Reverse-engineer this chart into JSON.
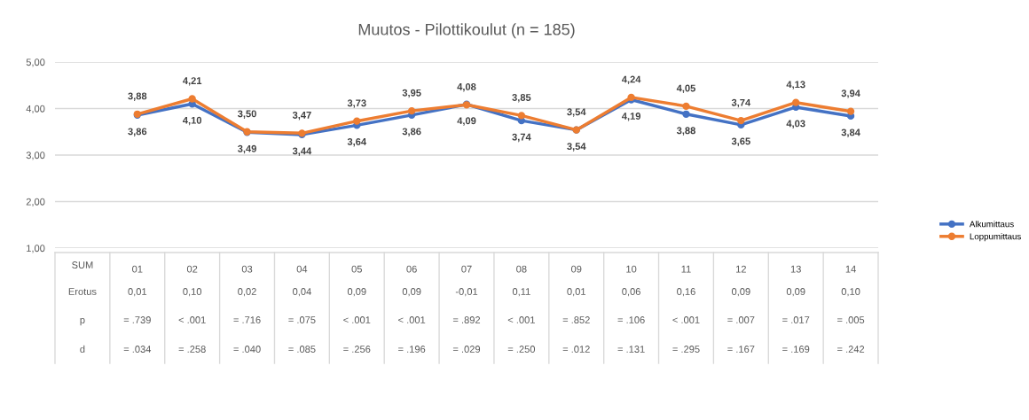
{
  "chart_data": {
    "type": "line",
    "title": "Muutos - Pilottikoulut (n = 185)",
    "xlabel": "SUM",
    "categories": [
      "01",
      "02",
      "03",
      "04",
      "05",
      "06",
      "07",
      "08",
      "09",
      "10",
      "11",
      "12",
      "13",
      "14"
    ],
    "series": [
      {
        "name": "Alkumittaus",
        "color": "#4472c4",
        "values": [
          3.86,
          4.1,
          3.49,
          3.44,
          3.64,
          3.86,
          4.09,
          3.74,
          3.54,
          4.19,
          3.88,
          3.65,
          4.03,
          3.84
        ],
        "value_labels": [
          "3,86",
          "4,10",
          "3,49",
          "3,44",
          "3,64",
          "3,86",
          "4,09",
          "3,74",
          "3,54",
          "4,19",
          "3,88",
          "3,65",
          "4,03",
          "3,84"
        ]
      },
      {
        "name": "Loppumittaus",
        "color": "#ed7d31",
        "values": [
          3.88,
          4.21,
          3.5,
          3.47,
          3.73,
          3.95,
          4.08,
          3.85,
          3.54,
          4.24,
          4.05,
          3.74,
          4.13,
          3.94
        ],
        "value_labels": [
          "3,88",
          "4,21",
          "3,50",
          "3,47",
          "3,73",
          "3,95",
          "4,08",
          "3,85",
          "3,54",
          "4,24",
          "4,05",
          "3,74",
          "4,13",
          "3,94"
        ]
      }
    ],
    "ylim": [
      1,
      5
    ],
    "yticks": [
      {
        "value": 1,
        "label": "1,00"
      },
      {
        "value": 2,
        "label": "2,00"
      },
      {
        "value": 3,
        "label": "3,00"
      },
      {
        "value": 4,
        "label": "4,00"
      },
      {
        "value": 5,
        "label": "5,00"
      }
    ],
    "grid": "y",
    "legend": "right",
    "marker": "circle",
    "line_style": "solid",
    "annotations": [
      "Erotus",
      "0,01",
      "0,10",
      "0,02",
      "0,04",
      "0,09",
      "0,09",
      "-0,01",
      "0,11",
      "0,01",
      "0,06",
      "0,16",
      "0,09",
      "0,09",
      "0,10",
      "p",
      "= .739",
      "< .001",
      "= .716",
      "= .075",
      "< .001",
      "< .001",
      "= .892",
      "< .001",
      "= .852",
      "= .106",
      "< .001",
      "= .007",
      "= .017",
      "= .005",
      "d",
      "= .034",
      "= .258",
      "= .040",
      "= .085",
      "= .256",
      "= .196",
      "= .029",
      "= .250",
      "= .012",
      "= .131",
      "= .295",
      "= .167",
      "= .169",
      "= .242"
    ]
  }
}
